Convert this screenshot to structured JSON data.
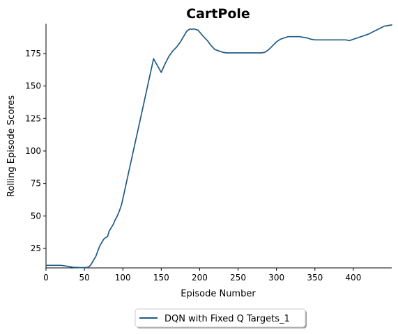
{
  "chart_data": {
    "type": "line",
    "title": "CartPole",
    "xlabel": "Episode Number",
    "ylabel": "Rolling Episode Scores",
    "xlim": [
      0,
      450
    ],
    "ylim": [
      10,
      198
    ],
    "xticks": [
      0,
      50,
      100,
      150,
      200,
      250,
      300,
      350,
      400
    ],
    "yticks": [
      25,
      50,
      75,
      100,
      125,
      150,
      175
    ],
    "grid": false,
    "legend_position": "bottom-center",
    "series": [
      {
        "name": "DQN with Fixed Q Targets_1",
        "color": "#1f5a85",
        "x": [
          0,
          10,
          20,
          25,
          30,
          35,
          40,
          45,
          50,
          55,
          58,
          62,
          65,
          68,
          70,
          73,
          75,
          78,
          80,
          82,
          85,
          88,
          90,
          92,
          95,
          98,
          100,
          110,
          120,
          130,
          140,
          150,
          155,
          160,
          165,
          170,
          175,
          180,
          183,
          185,
          188,
          190,
          192,
          195,
          198,
          200,
          205,
          210,
          215,
          220,
          225,
          230,
          235,
          240,
          250,
          260,
          270,
          280,
          285,
          290,
          295,
          300,
          305,
          310,
          315,
          320,
          325,
          330,
          335,
          340,
          345,
          350,
          360,
          370,
          380,
          385,
          390,
          395,
          400,
          410,
          420,
          430,
          440,
          450
        ],
        "values": [
          12,
          12,
          12,
          11.5,
          11,
          10.5,
          10.3,
          10.2,
          10.2,
          10.5,
          12,
          16,
          19,
          24,
          27,
          30,
          32,
          33.5,
          34,
          38,
          41,
          44,
          47,
          49,
          53,
          58,
          63,
          90,
          117,
          144,
          171,
          160.5,
          167,
          173,
          177,
          180,
          184,
          189,
          192,
          193,
          194,
          193.5,
          194,
          193.5,
          193,
          191.5,
          188,
          185,
          181,
          178,
          177,
          176,
          175.5,
          175.5,
          175.5,
          175.5,
          175.5,
          175.5,
          176,
          178,
          181,
          184,
          186,
          187,
          188,
          188,
          188,
          188,
          187.5,
          187,
          186,
          185.5,
          185.5,
          185.5,
          185.5,
          185.5,
          185.5,
          185,
          186,
          188,
          190,
          193,
          196,
          197
        ]
      }
    ]
  }
}
